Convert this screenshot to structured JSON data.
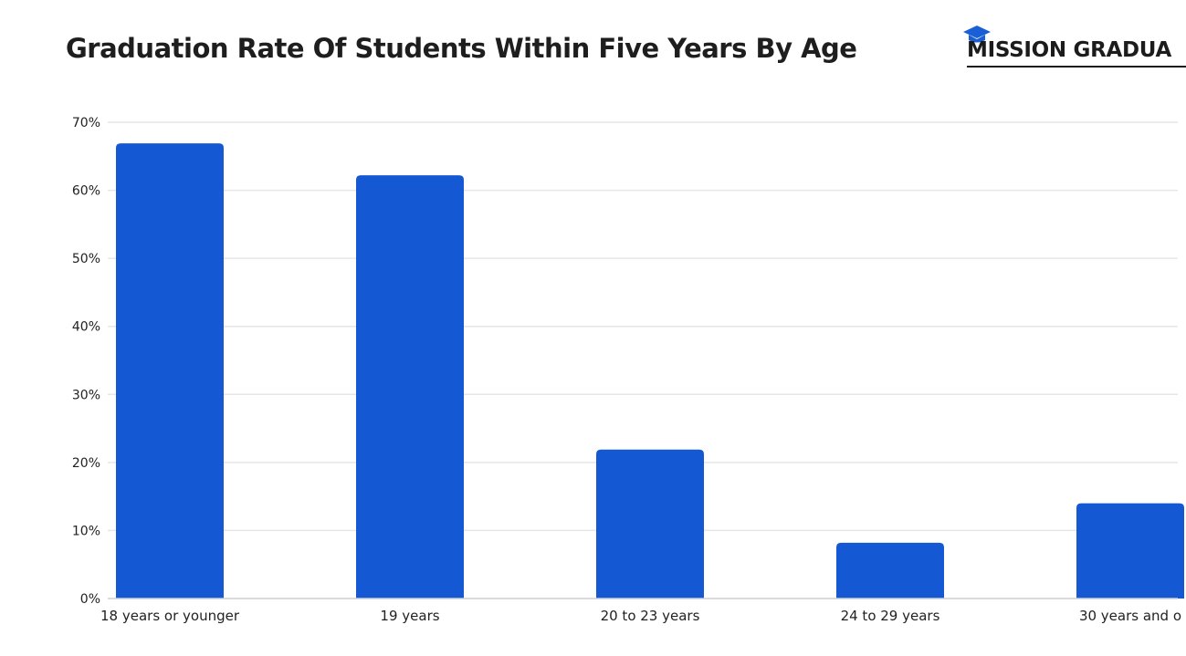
{
  "chart_data": {
    "type": "bar",
    "title": "Graduation Rate Of Students Within Five Years By Age",
    "categories": [
      "18 years or younger",
      "19 years",
      "20 to 23 years",
      "24 to 29 years",
      "30 years and o"
    ],
    "values": [
      66.9,
      62.2,
      21.9,
      8.2,
      14.0
    ],
    "y_ticks": [
      "0%",
      "10%",
      "20%",
      "30%",
      "40%",
      "50%",
      "60%",
      "70%"
    ],
    "ylim": [
      0,
      70
    ],
    "xlabel": "",
    "ylabel": "",
    "grid": true,
    "legend": "none",
    "bar_color": "#1458d4"
  },
  "brand": {
    "name": "MISSION GRADUA",
    "icon": "graduation-cap-icon",
    "icon_color": "#1a5fd6"
  }
}
